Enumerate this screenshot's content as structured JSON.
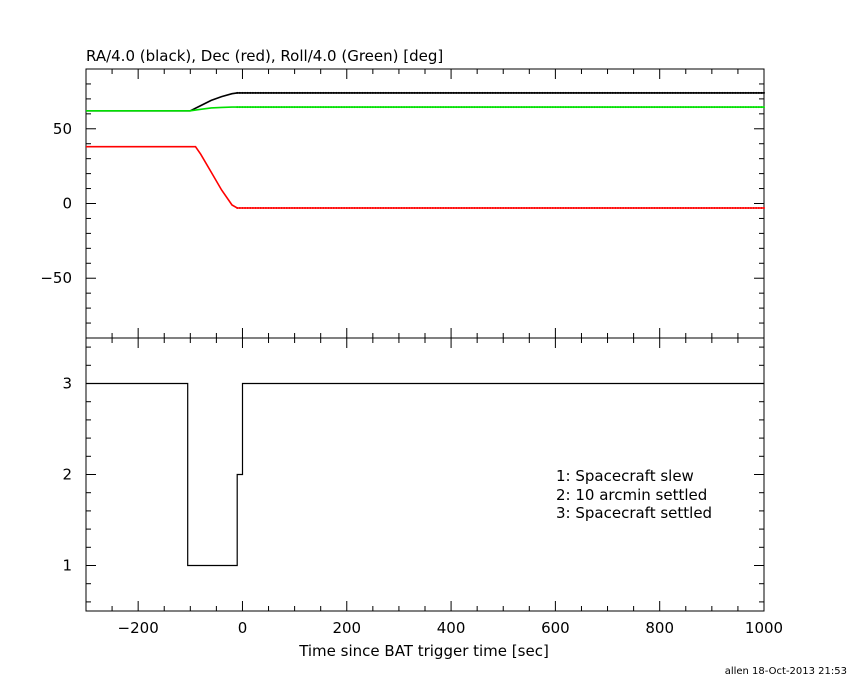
{
  "chart_data": [
    {
      "type": "line",
      "title": "RA/4.0 (black), Dec (red), Roll/4.0 (Green) [deg]",
      "xlim": [
        -300,
        1000
      ],
      "ylim": [
        -90,
        90
      ],
      "y_ticks": [
        -50,
        0,
        50
      ],
      "y_tick_labels": [
        "−50",
        "0",
        "50"
      ],
      "series": [
        {
          "color": "#000000",
          "x": [
            -300,
            -100,
            -80,
            -60,
            -40,
            -20,
            -10,
            1000
          ],
          "y": [
            62,
            62,
            65.5,
            69,
            71.5,
            73.5,
            74,
            74
          ]
        },
        {
          "color": "#00e000",
          "x": [
            -300,
            -100,
            -80,
            -60,
            -40,
            -20,
            -10,
            1000
          ],
          "y": [
            62,
            62,
            63,
            64,
            64.3,
            64.5,
            64.5,
            64.5
          ]
        },
        {
          "color": "#ff0000",
          "x": [
            -300,
            -90,
            -80,
            -60,
            -40,
            -20,
            -10,
            1000
          ],
          "y": [
            38,
            38,
            33,
            21,
            9,
            -1,
            -3,
            -3
          ]
        }
      ]
    },
    {
      "type": "line",
      "xlim": [
        -300,
        1000
      ],
      "ylim": [
        0.5,
        3.5
      ],
      "y_ticks": [
        1,
        2,
        3
      ],
      "y_tick_labels": [
        "1",
        "2",
        "3"
      ],
      "x_ticks": [
        -200,
        0,
        200,
        400,
        600,
        800,
        1000
      ],
      "x_tick_labels": [
        "−200",
        "0",
        "200",
        "400",
        "600",
        "800",
        "1000"
      ],
      "xlabel": "Time since BAT trigger time [sec]",
      "series": [
        {
          "color": "#000000",
          "x": [
            -300,
            -105,
            -105,
            -10,
            -10,
            0,
            0,
            1000
          ],
          "y": [
            3,
            3,
            1,
            1,
            2,
            2,
            3,
            3
          ]
        }
      ],
      "legend": [
        "1: Spacecraft slew",
        "2: 10 arcmin settled",
        "3: Spacecraft settled"
      ],
      "footer": "allen 18-Oct-2013 21:53"
    }
  ]
}
